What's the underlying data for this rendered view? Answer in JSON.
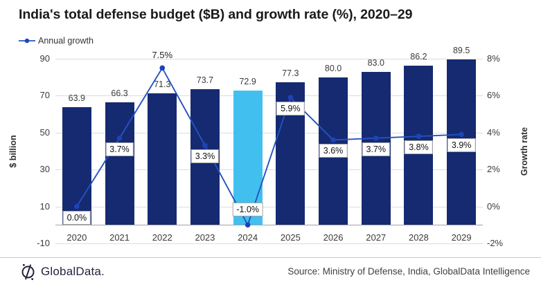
{
  "chart_data": {
    "type": "bar+line",
    "title": "India's total defense budget ($B) and growth rate (%), 2020–29",
    "categories": [
      "2020",
      "2021",
      "2022",
      "2023",
      "2024",
      "2025",
      "2026",
      "2027",
      "2028",
      "2029"
    ],
    "series": [
      {
        "name": "Total defense budget ($B)",
        "type": "bar",
        "axis": "left",
        "values": [
          63.9,
          66.3,
          71.3,
          73.7,
          72.9,
          77.3,
          80.0,
          83.0,
          86.2,
          89.5
        ],
        "labels": [
          "63.9",
          "66.3",
          "71.3",
          "73.7",
          "72.9",
          "77.3",
          "80.0",
          "83.0",
          "86.2",
          "89.5"
        ],
        "highlight_index": 4
      },
      {
        "name": "Annual growth",
        "type": "line",
        "axis": "right",
        "values": [
          0.0,
          3.7,
          7.5,
          3.3,
          -1.0,
          5.9,
          3.6,
          3.7,
          3.8,
          3.9
        ],
        "labels": [
          "0.0%",
          "3.7%",
          "7.5%",
          "3.3%",
          "-1.0%",
          "5.9%",
          "3.6%",
          "3.7%",
          "3.8%",
          "3.9%"
        ],
        "label_placement": [
          "below",
          "below",
          "above-plain",
          "below",
          "above",
          "below",
          "below",
          "below",
          "below",
          "below"
        ]
      }
    ],
    "legend": {
      "label": "Annual growth"
    },
    "left_axis": {
      "label": "$ billion",
      "min": -10,
      "max": 90,
      "ticks": [
        90,
        70,
        50,
        30,
        10,
        -10
      ]
    },
    "right_axis": {
      "label": "Growth rate",
      "min": -2,
      "max": 8,
      "tick_labels": [
        "8%",
        "6%",
        "4%",
        "2%",
        "0%",
        "-2%"
      ]
    },
    "grid": true,
    "bar_baseline": 0
  },
  "colors": {
    "bar": "#152a70",
    "bar_highlight": "#41c0f0",
    "line": "#2353c0",
    "marker": "#1e43b8",
    "grid": "#dcdcdc",
    "brand": "#23243c"
  },
  "footer": {
    "brand": "GlobalData.",
    "source": "Source: Ministry of Defense, India, GlobalData Intelligence"
  }
}
